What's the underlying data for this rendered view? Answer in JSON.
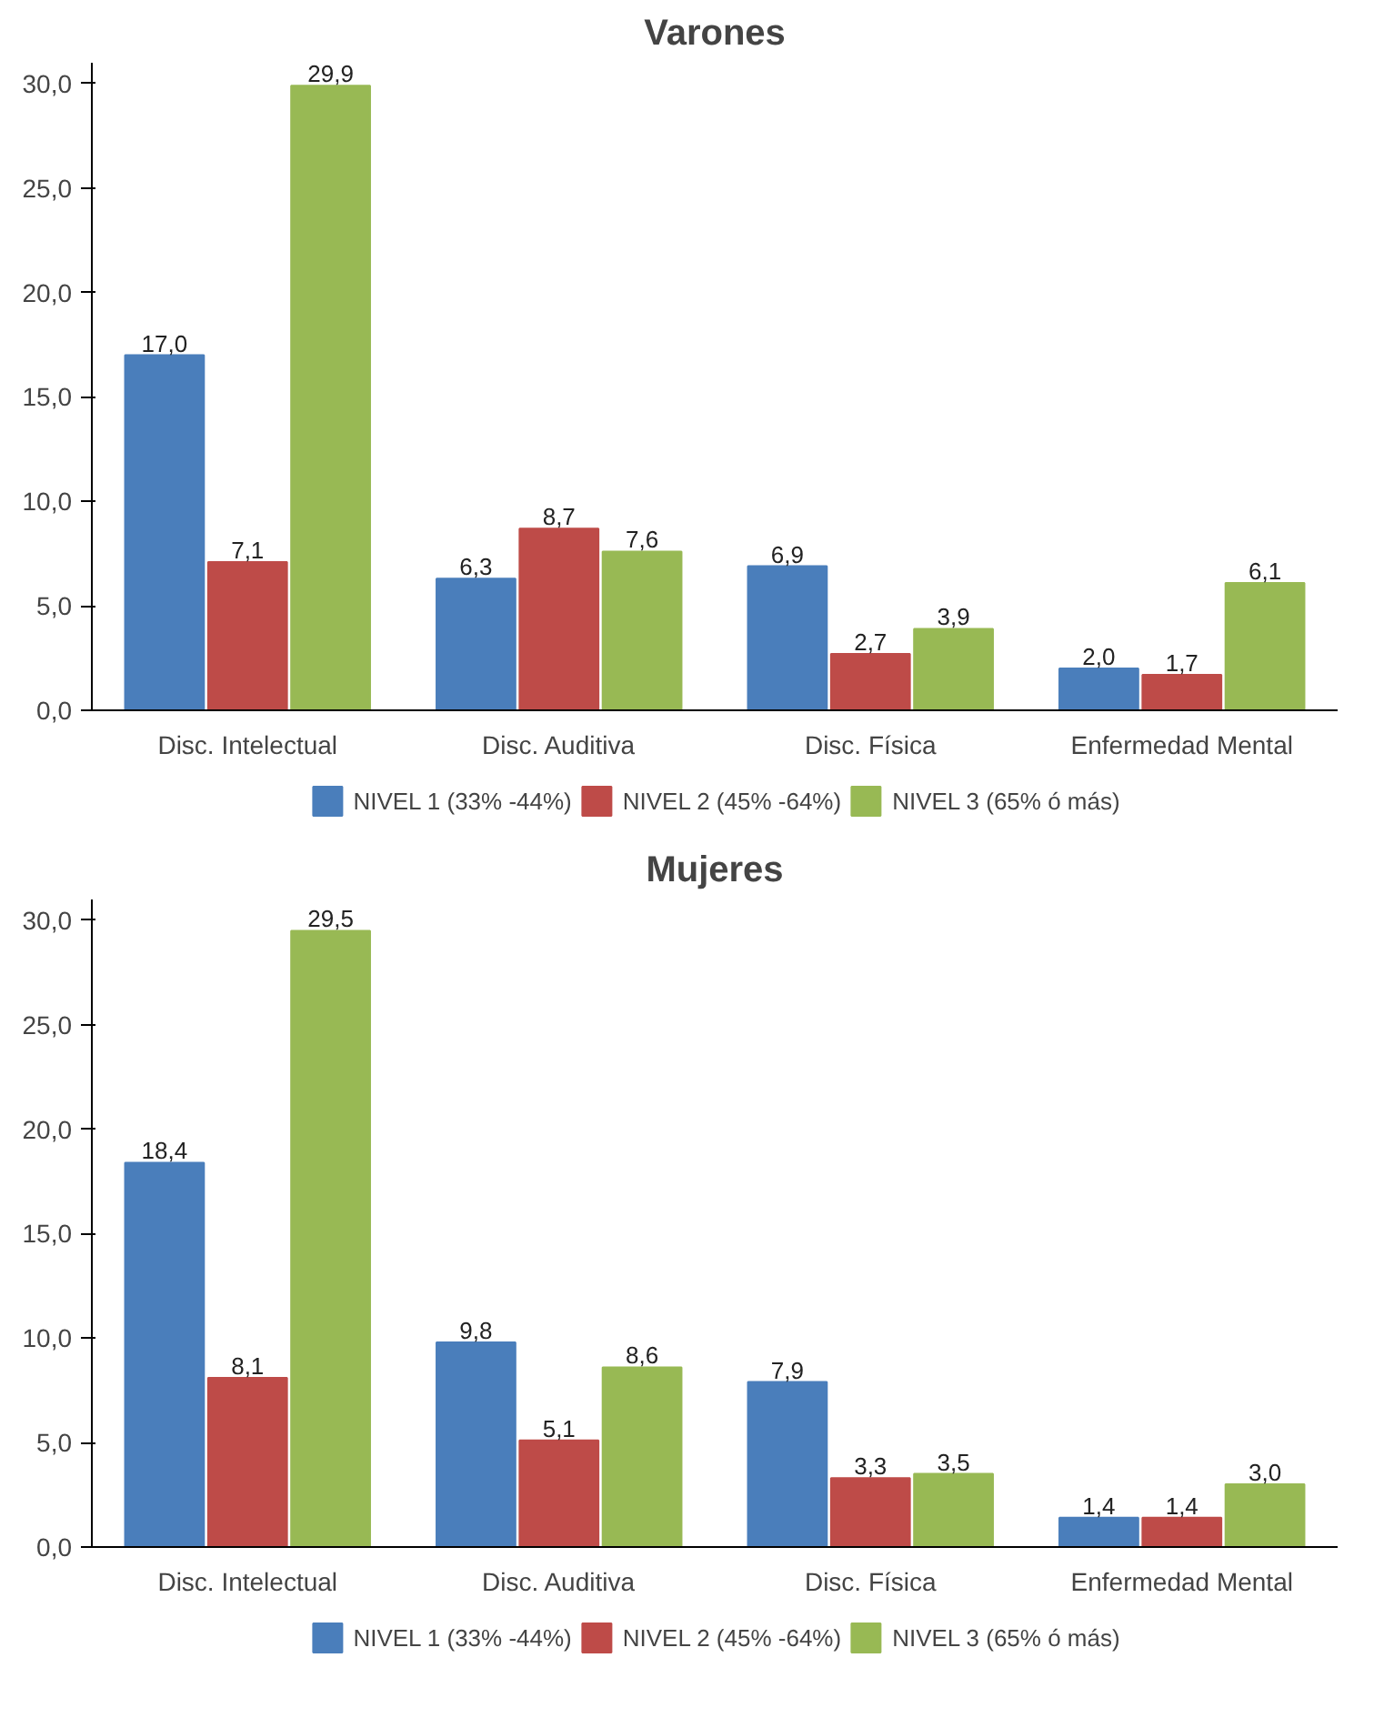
{
  "chart_data": [
    {
      "type": "bar",
      "title": "Varones",
      "categories": [
        "Disc. Intelectual",
        "Disc. Auditiva",
        "Disc. Física",
        "Enfermedad Mental"
      ],
      "series": [
        {
          "name": "NIVEL 1 (33% -44%)",
          "color": "#4a7ebb",
          "values": [
            17.0,
            6.3,
            6.9,
            2.0
          ],
          "value_labels": [
            "17,0",
            "6,3",
            "6,9",
            "2,0"
          ]
        },
        {
          "name": "NIVEL 2 (45% -64%)",
          "color": "#be4b48",
          "values": [
            7.1,
            8.7,
            2.7,
            1.7
          ],
          "value_labels": [
            "7,1",
            "8,7",
            "2,7",
            "1,7"
          ]
        },
        {
          "name": "NIVEL 3 (65% ó más)",
          "color": "#98b954",
          "values": [
            29.9,
            7.6,
            3.9,
            6.1
          ],
          "value_labels": [
            "29,9",
            "7,6",
            "3,9",
            "6,1"
          ]
        }
      ],
      "ylim": [
        0,
        31
      ],
      "yticks": [
        {
          "value": 0,
          "label": "0,0"
        },
        {
          "value": 5,
          "label": "5,0"
        },
        {
          "value": 10,
          "label": "10,0"
        },
        {
          "value": 15,
          "label": "15,0"
        },
        {
          "value": 20,
          "label": "20,0"
        },
        {
          "value": 25,
          "label": "25,0"
        },
        {
          "value": 30,
          "label": "30,0"
        }
      ],
      "grid": false,
      "legend": "bottom"
    },
    {
      "type": "bar",
      "title": "Mujeres",
      "categories": [
        "Disc. Intelectual",
        "Disc. Auditiva",
        "Disc. Física",
        "Enfermedad Mental"
      ],
      "series": [
        {
          "name": "NIVEL 1 (33% -44%)",
          "color": "#4a7ebb",
          "values": [
            18.4,
            9.8,
            7.9,
            1.4
          ],
          "value_labels": [
            "18,4",
            "9,8",
            "7,9",
            "1,4"
          ]
        },
        {
          "name": "NIVEL 2 (45% -64%)",
          "color": "#be4b48",
          "values": [
            8.1,
            5.1,
            3.3,
            1.4
          ],
          "value_labels": [
            "8,1",
            "5,1",
            "3,3",
            "1,4"
          ]
        },
        {
          "name": "NIVEL 3 (65% ó más)",
          "color": "#98b954",
          "values": [
            29.5,
            8.6,
            3.5,
            3.0
          ],
          "value_labels": [
            "29,5",
            "8,6",
            "3,5",
            "3,0"
          ]
        }
      ],
      "ylim": [
        0,
        31
      ],
      "yticks": [
        {
          "value": 0,
          "label": "0,0"
        },
        {
          "value": 5,
          "label": "5,0"
        },
        {
          "value": 10,
          "label": "10,0"
        },
        {
          "value": 15,
          "label": "15,0"
        },
        {
          "value": 20,
          "label": "20,0"
        },
        {
          "value": 25,
          "label": "25,0"
        },
        {
          "value": 30,
          "label": "30,0"
        }
      ],
      "grid": false,
      "legend": "bottom"
    }
  ]
}
